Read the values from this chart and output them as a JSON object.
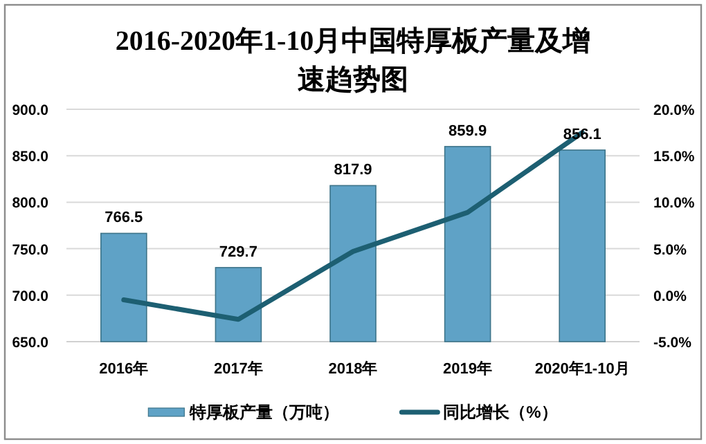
{
  "chart_data": {
    "type": "bar",
    "title": "2016-2020年1-10月中国特厚板产量及增速趋势图",
    "categories": [
      "2016年",
      "2017年",
      "2018年",
      "2019年",
      "2020年1-10月"
    ],
    "series": [
      {
        "name": "特厚板产量（万吨）",
        "color": "#5fa2c6",
        "values": [
          766.5,
          729.7,
          817.9,
          859.9,
          856.1
        ],
        "value_labels": [
          "766.5",
          "729.7",
          "817.9",
          "859.9",
          "856.1"
        ]
      },
      {
        "name": "同比增长（%）",
        "type": "line",
        "axis": "y2",
        "color": "#1d5f72",
        "values": [
          -0.5,
          -2.6,
          4.7,
          8.9,
          17.5
        ]
      }
    ],
    "ylim": [
      650,
      900
    ],
    "yticks": [
      {
        "value": 650,
        "label": "650.0"
      },
      {
        "value": 700,
        "label": "700.0"
      },
      {
        "value": 750,
        "label": "750.0"
      },
      {
        "value": 800,
        "label": "800.0"
      },
      {
        "value": 850,
        "label": "850.0"
      },
      {
        "value": 900,
        "label": "900.0"
      }
    ],
    "y2lim": [
      -5,
      20
    ],
    "y2ticks": [
      {
        "value": -5,
        "label": "-5.0%"
      },
      {
        "value": 0,
        "label": "0.0%"
      },
      {
        "value": 5,
        "label": "5.0%"
      },
      {
        "value": 10,
        "label": "10.0%"
      },
      {
        "value": 15,
        "label": "15.0%"
      },
      {
        "value": 20,
        "label": "20.0%"
      }
    ],
    "grid": "y",
    "legend": "bottom"
  }
}
